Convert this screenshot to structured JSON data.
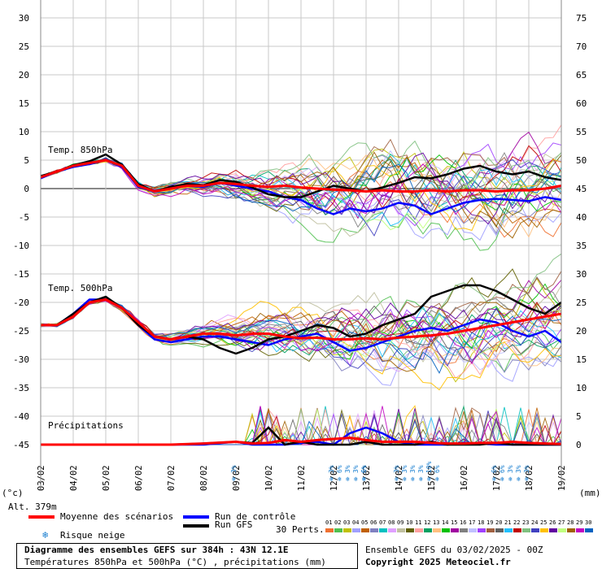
{
  "chart_data": {
    "type": "line",
    "title": "Diagramme des ensembles GEFS sur 384h : 43N 12.1E",
    "subtitle": "Températures 850hPa et 500hPa (°C) , précipitations (mm)",
    "left_axis_ticks": [
      "30",
      "25",
      "20",
      "15",
      "10",
      "5",
      "0",
      "-5",
      "-10",
      "-15",
      "-20",
      "-25",
      "-30",
      "-35",
      "-40",
      "-45"
    ],
    "right_axis_ticks": [
      "75",
      "70",
      "65",
      "60",
      "55",
      "50",
      "45",
      "40",
      "35",
      "30",
      "25",
      "20",
      "15",
      "10",
      "5",
      "0"
    ],
    "left_unit": "(°c)",
    "right_unit": "(mm)",
    "altitude": "Alt. 379m",
    "x_labels": [
      "03/02",
      "04/02",
      "05/02",
      "06/02",
      "07/02",
      "08/02",
      "09/02",
      "10/02",
      "11/02",
      "12/02",
      "13/02",
      "14/02",
      "15/02",
      "16/02",
      "17/02",
      "18/02",
      "19/02"
    ],
    "ylim": [
      -45,
      30
    ],
    "section_labels": {
      "t850": "Temp. 850hPa",
      "t500": "Temp. 500hPa",
      "precip": "Précipitations"
    },
    "series": [
      {
        "name": "Moyenne des scénarios",
        "role": "mean850",
        "color": "#ff0000",
        "x": [
          0,
          12,
          24,
          36,
          48,
          60,
          72,
          84,
          96,
          108,
          120,
          132,
          144,
          156,
          168,
          180,
          192,
          204,
          216,
          228,
          240,
          252,
          264,
          276,
          288,
          300,
          312,
          324,
          336,
          348,
          360,
          372,
          384
        ],
        "values": [
          2,
          3,
          4,
          4.5,
          5,
          4,
          0.5,
          -0.5,
          0,
          0.5,
          0.5,
          1,
          0.8,
          0.5,
          0.3,
          0.5,
          0.2,
          0,
          -0.2,
          -0.3,
          -0.5,
          -0.3,
          -0.5,
          -0.5,
          -0.3,
          -0.5,
          -0.3,
          -0.3,
          -0.5,
          -0.3,
          -0.3,
          0,
          0.5
        ]
      },
      {
        "name": "Run de contrôle",
        "role": "ctrl850",
        "color": "#0000ff",
        "x": [
          0,
          12,
          24,
          36,
          48,
          60,
          72,
          84,
          96,
          108,
          120,
          132,
          144,
          156,
          168,
          180,
          192,
          204,
          216,
          228,
          240,
          252,
          264,
          276,
          288,
          300,
          312,
          324,
          336,
          348,
          360,
          372,
          384
        ],
        "values": [
          1.8,
          3,
          3.8,
          4.3,
          5,
          3.8,
          0.3,
          -0.5,
          0.2,
          0.5,
          0.3,
          1,
          0.5,
          0,
          -0.5,
          -1.5,
          -2,
          -3.5,
          -4.5,
          -3.5,
          -4,
          -3.5,
          -2.5,
          -3,
          -4.5,
          -3.5,
          -2.5,
          -2,
          -1.8,
          -2,
          -2.2,
          -1.5,
          -2
        ]
      },
      {
        "name": "Run GFS",
        "role": "gfs850",
        "color": "#000000",
        "x": [
          0,
          12,
          24,
          36,
          48,
          60,
          72,
          84,
          96,
          108,
          120,
          132,
          144,
          156,
          168,
          180,
          192,
          204,
          216,
          228,
          240,
          252,
          264,
          276,
          288,
          300,
          312,
          324,
          336,
          348,
          360,
          372,
          384
        ],
        "values": [
          2.2,
          3,
          4.1,
          4.8,
          6,
          4.2,
          0.8,
          -0.5,
          0.3,
          0.8,
          0.6,
          1.5,
          1.2,
          0.2,
          -1,
          -1.5,
          -1.5,
          -0.5,
          0.5,
          0,
          -0.5,
          0.2,
          1,
          2,
          1.8,
          2.5,
          3.5,
          4,
          3,
          2.5,
          3,
          2,
          1.5
        ]
      },
      {
        "name": "Moyenne des scénarios",
        "role": "mean500",
        "color": "#ff0000",
        "x": [
          0,
          12,
          24,
          36,
          48,
          60,
          72,
          84,
          96,
          108,
          120,
          132,
          144,
          156,
          168,
          180,
          192,
          204,
          216,
          228,
          240,
          252,
          264,
          276,
          288,
          300,
          312,
          324,
          336,
          348,
          360,
          372,
          384
        ],
        "values": [
          -24,
          -24,
          -22.5,
          -20,
          -19.5,
          -21,
          -23.5,
          -26,
          -26.5,
          -26,
          -25.5,
          -25.5,
          -25.8,
          -25.5,
          -25.5,
          -26,
          -26.3,
          -26.2,
          -26.5,
          -26.5,
          -26.3,
          -26.5,
          -26.2,
          -26,
          -25.8,
          -25.5,
          -25,
          -24.5,
          -24,
          -23.5,
          -23,
          -22.5,
          -22
        ]
      },
      {
        "name": "Run de contrôle",
        "role": "ctrl500",
        "color": "#0000ff",
        "x": [
          0,
          12,
          24,
          36,
          48,
          60,
          72,
          84,
          96,
          108,
          120,
          132,
          144,
          156,
          168,
          180,
          192,
          204,
          216,
          228,
          240,
          252,
          264,
          276,
          288,
          300,
          312,
          324,
          336,
          348,
          360,
          372,
          384
        ],
        "values": [
          -24,
          -24,
          -22,
          -19.5,
          -19.5,
          -21,
          -24,
          -26.5,
          -27,
          -26.5,
          -26,
          -26,
          -26.5,
          -27,
          -27.5,
          -26.5,
          -26,
          -25.5,
          -27,
          -28.5,
          -28,
          -27,
          -26,
          -25,
          -24.5,
          -25,
          -24,
          -23,
          -23.5,
          -25,
          -26,
          -25,
          -27
        ]
      },
      {
        "name": "Run GFS",
        "role": "gfs500",
        "color": "#000000",
        "x": [
          0,
          12,
          24,
          36,
          48,
          60,
          72,
          84,
          96,
          108,
          120,
          132,
          144,
          156,
          168,
          180,
          192,
          204,
          216,
          228,
          240,
          252,
          264,
          276,
          288,
          300,
          312,
          324,
          336,
          348,
          360,
          372,
          384
        ],
        "values": [
          -24,
          -24,
          -22,
          -20,
          -19,
          -21,
          -24,
          -26,
          -26.5,
          -26,
          -26.5,
          -28,
          -29,
          -28,
          -26.5,
          -26,
          -25,
          -24,
          -24.5,
          -26,
          -25.5,
          -24,
          -23,
          -22,
          -19,
          -18,
          -17,
          -17,
          -18,
          -19.5,
          -21,
          -22,
          -20
        ]
      },
      {
        "name": "Moyenne des scénarios",
        "role": "meanP",
        "color": "#ff0000",
        "x": [
          0,
          24,
          48,
          72,
          96,
          120,
          144,
          156,
          168,
          180,
          192,
          204,
          216,
          228,
          240,
          252,
          264,
          276,
          288,
          300,
          312,
          324,
          336,
          348,
          360,
          372,
          384
        ],
        "values": [
          0,
          0,
          0,
          0,
          0,
          0.2,
          0.5,
          0.2,
          0.3,
          0.8,
          0.5,
          0.8,
          1,
          1.2,
          0.8,
          0.5,
          0.5,
          0.5,
          0.3,
          0.2,
          0.2,
          0.3,
          0.3,
          0.5,
          0.3,
          0.2,
          0.1
        ]
      },
      {
        "name": "Run de contrôle",
        "role": "ctrlP",
        "color": "#0000ff",
        "x": [
          0,
          24,
          48,
          72,
          96,
          120,
          144,
          156,
          168,
          180,
          192,
          204,
          216,
          228,
          240,
          252,
          264,
          276,
          288,
          300,
          312,
          324,
          336,
          348,
          360,
          372,
          384
        ],
        "values": [
          0,
          0,
          0,
          0,
          0,
          0,
          0.5,
          0,
          0,
          0,
          0.3,
          0.5,
          0,
          2,
          3,
          2,
          0.5,
          0,
          0,
          0,
          0.3,
          0.2,
          0,
          0,
          0,
          0,
          0
        ]
      },
      {
        "name": "Run GFS",
        "role": "gfsP",
        "color": "#000000",
        "x": [
          0,
          24,
          48,
          72,
          96,
          120,
          144,
          156,
          168,
          180,
          192,
          204,
          216,
          228,
          240,
          252,
          264,
          276,
          288,
          300,
          312,
          324,
          336,
          348,
          360,
          372,
          384
        ],
        "values": [
          0,
          0,
          0,
          0,
          0,
          0.2,
          0.5,
          0.3,
          3,
          0,
          0.5,
          0,
          0,
          0,
          0.5,
          0,
          0,
          0,
          0.5,
          0,
          0,
          0,
          0.3,
          0,
          0,
          0,
          0
        ]
      }
    ],
    "snow_risk": [
      {
        "day": "09/02",
        "values": [
          "3%"
        ]
      },
      {
        "day": "12/02",
        "values": [
          "3%",
          "6%",
          "3%",
          "3%",
          "6%"
        ]
      },
      {
        "day": "13/02",
        "values": [
          "6%"
        ]
      },
      {
        "day": "14/02",
        "values": [
          "3%",
          "3%",
          "3%",
          "3%",
          "10%",
          "6%"
        ]
      },
      {
        "day": "17/02",
        "values": [
          "6%",
          "6%",
          "3%",
          "3%",
          "3%"
        ]
      }
    ]
  },
  "legend": {
    "mean": "Moyenne des scénarios",
    "control": "Run de contrôle",
    "gfs": "Run GFS",
    "snow": "Risque neige",
    "perts_label": "30 Perts.",
    "perts_numbers": [
      "01",
      "02",
      "03",
      "04",
      "05",
      "06",
      "07",
      "08",
      "09",
      "10",
      "11",
      "12",
      "13",
      "14",
      "15",
      "16",
      "17",
      "18",
      "19",
      "20",
      "21",
      "22",
      "23",
      "24",
      "25",
      "26",
      "27",
      "28",
      "29",
      "30"
    ],
    "perts_colors": [
      "#f07030",
      "#50c050",
      "#c0c000",
      "#a0a0ff",
      "#c06000",
      "#8080c0",
      "#00c0c0",
      "#e0a0ff",
      "#c0c0a0",
      "#606000",
      "#ffa0a0",
      "#00a060",
      "#ffc080",
      "#00c000",
      "#a000a0",
      "#808080",
      "#c0c0ff",
      "#a040ff",
      "#a06040",
      "#606060",
      "#20c0ff",
      "#c00000",
      "#80c080",
      "#4040c0",
      "#ffc000",
      "#6000a0",
      "#c0ff80",
      "#a06000",
      "#c000c0",
      "#0060c0"
    ]
  },
  "footer": {
    "title": "Diagramme des ensembles GEFS sur 384h : 43N 12.1E",
    "subtitle": "Températures 850hPa et 500hPa (°C) , précipitations (mm)",
    "run": "Ensemble GEFS du 03/02/2025 - 00Z",
    "copyright": "Copyright 2025 Meteociel.fr"
  }
}
